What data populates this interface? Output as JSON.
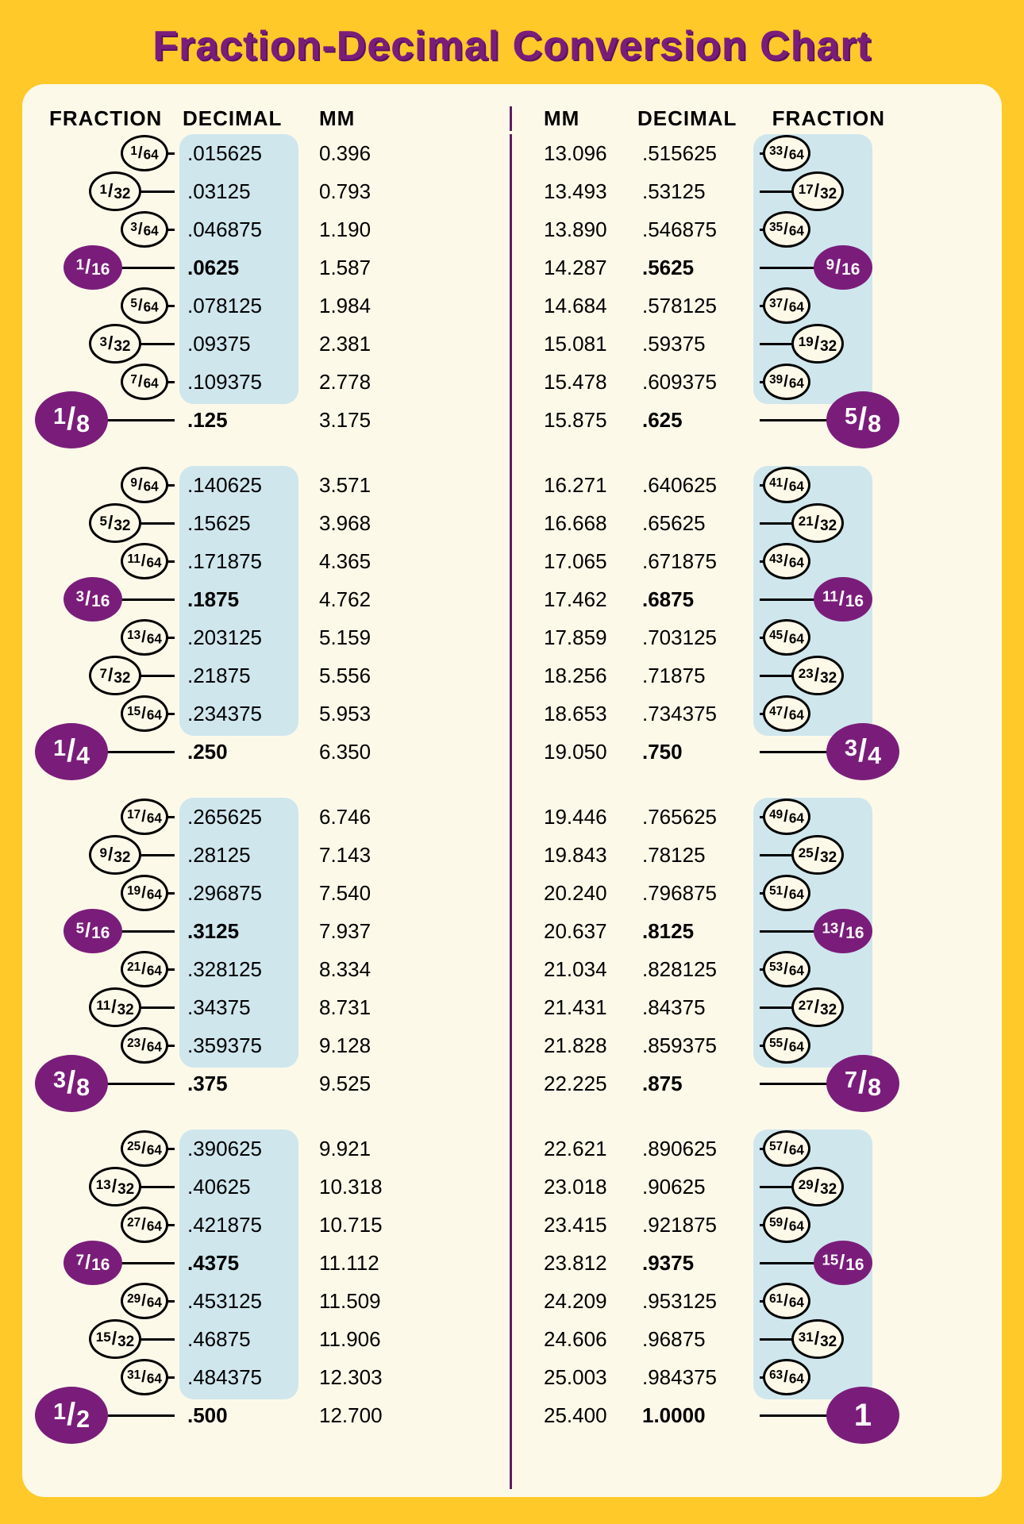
{
  "title": "Fraction-Decimal Conversion Chart",
  "headers": {
    "fraction": "FRACTION",
    "decimal": "DECIMAL",
    "mm": "MM"
  },
  "colors": {
    "page_bg": "#ffc929",
    "panel_bg": "#fdf9e9",
    "title_color": "#7a1d7a",
    "accent_purple": "#7a1d7a",
    "decimal_pill": "#cfe6ed",
    "divider": "#5d1d63"
  },
  "fontsizes": {
    "title": 52,
    "header": 26,
    "body": 26
  },
  "groups": [
    {
      "left": [
        {
          "num": "1",
          "den": "64",
          "dec": ".015625",
          "mm": "0.396",
          "lvl": "s64"
        },
        {
          "num": "1",
          "den": "32",
          "dec": ".03125",
          "mm": "0.793",
          "lvl": "s32"
        },
        {
          "num": "3",
          "den": "64",
          "dec": ".046875",
          "mm": "1.190",
          "lvl": "s64"
        },
        {
          "num": "1",
          "den": "16",
          "dec": ".0625",
          "mm": "1.587",
          "lvl": "s16",
          "bold": true
        },
        {
          "num": "5",
          "den": "64",
          "dec": ".078125",
          "mm": "1.984",
          "lvl": "s64"
        },
        {
          "num": "3",
          "den": "32",
          "dec": ".09375",
          "mm": "2.381",
          "lvl": "s32"
        },
        {
          "num": "7",
          "den": "64",
          "dec": ".109375",
          "mm": "2.778",
          "lvl": "s64"
        },
        {
          "num": "1",
          "den": "8",
          "dec": ".125",
          "mm": "3.175",
          "lvl": "s8",
          "bold": true
        }
      ],
      "right": [
        {
          "num": "33",
          "den": "64",
          "dec": ".515625",
          "mm": "13.096",
          "lvl": "s64"
        },
        {
          "num": "17",
          "den": "32",
          "dec": ".53125",
          "mm": "13.493",
          "lvl": "s32"
        },
        {
          "num": "35",
          "den": "64",
          "dec": ".546875",
          "mm": "13.890",
          "lvl": "s64"
        },
        {
          "num": "9",
          "den": "16",
          "dec": ".5625",
          "mm": "14.287",
          "lvl": "s16",
          "bold": true
        },
        {
          "num": "37",
          "den": "64",
          "dec": ".578125",
          "mm": "14.684",
          "lvl": "s64"
        },
        {
          "num": "19",
          "den": "32",
          "dec": ".59375",
          "mm": "15.081",
          "lvl": "s32"
        },
        {
          "num": "39",
          "den": "64",
          "dec": ".609375",
          "mm": "15.478",
          "lvl": "s64"
        },
        {
          "num": "5",
          "den": "8",
          "dec": ".625",
          "mm": "15.875",
          "lvl": "s8",
          "bold": true
        }
      ]
    },
    {
      "left": [
        {
          "num": "9",
          "den": "64",
          "dec": ".140625",
          "mm": "3.571",
          "lvl": "s64"
        },
        {
          "num": "5",
          "den": "32",
          "dec": ".15625",
          "mm": "3.968",
          "lvl": "s32"
        },
        {
          "num": "11",
          "den": "64",
          "dec": ".171875",
          "mm": "4.365",
          "lvl": "s64"
        },
        {
          "num": "3",
          "den": "16",
          "dec": ".1875",
          "mm": "4.762",
          "lvl": "s16",
          "bold": true
        },
        {
          "num": "13",
          "den": "64",
          "dec": ".203125",
          "mm": "5.159",
          "lvl": "s64"
        },
        {
          "num": "7",
          "den": "32",
          "dec": ".21875",
          "mm": "5.556",
          "lvl": "s32"
        },
        {
          "num": "15",
          "den": "64",
          "dec": ".234375",
          "mm": "5.953",
          "lvl": "s64"
        },
        {
          "num": "1",
          "den": "4",
          "dec": ".250",
          "mm": "6.350",
          "lvl": "s8",
          "bold": true
        }
      ],
      "right": [
        {
          "num": "41",
          "den": "64",
          "dec": ".640625",
          "mm": "16.271",
          "lvl": "s64"
        },
        {
          "num": "21",
          "den": "32",
          "dec": ".65625",
          "mm": "16.668",
          "lvl": "s32"
        },
        {
          "num": "43",
          "den": "64",
          "dec": ".671875",
          "mm": "17.065",
          "lvl": "s64"
        },
        {
          "num": "11",
          "den": "16",
          "dec": ".6875",
          "mm": "17.462",
          "lvl": "s16",
          "bold": true
        },
        {
          "num": "45",
          "den": "64",
          "dec": ".703125",
          "mm": "17.859",
          "lvl": "s64"
        },
        {
          "num": "23",
          "den": "32",
          "dec": ".71875",
          "mm": "18.256",
          "lvl": "s32"
        },
        {
          "num": "47",
          "den": "64",
          "dec": ".734375",
          "mm": "18.653",
          "lvl": "s64"
        },
        {
          "num": "3",
          "den": "4",
          "dec": ".750",
          "mm": "19.050",
          "lvl": "s8",
          "bold": true
        }
      ]
    },
    {
      "left": [
        {
          "num": "17",
          "den": "64",
          "dec": ".265625",
          "mm": "6.746",
          "lvl": "s64"
        },
        {
          "num": "9",
          "den": "32",
          "dec": ".28125",
          "mm": "7.143",
          "lvl": "s32"
        },
        {
          "num": "19",
          "den": "64",
          "dec": ".296875",
          "mm": "7.540",
          "lvl": "s64"
        },
        {
          "num": "5",
          "den": "16",
          "dec": ".3125",
          "mm": "7.937",
          "lvl": "s16",
          "bold": true
        },
        {
          "num": "21",
          "den": "64",
          "dec": ".328125",
          "mm": "8.334",
          "lvl": "s64"
        },
        {
          "num": "11",
          "den": "32",
          "dec": ".34375",
          "mm": "8.731",
          "lvl": "s32"
        },
        {
          "num": "23",
          "den": "64",
          "dec": ".359375",
          "mm": "9.128",
          "lvl": "s64"
        },
        {
          "num": "3",
          "den": "8",
          "dec": ".375",
          "mm": "9.525",
          "lvl": "s8",
          "bold": true
        }
      ],
      "right": [
        {
          "num": "49",
          "den": "64",
          "dec": ".765625",
          "mm": "19.446",
          "lvl": "s64"
        },
        {
          "num": "25",
          "den": "32",
          "dec": ".78125",
          "mm": "19.843",
          "lvl": "s32"
        },
        {
          "num": "51",
          "den": "64",
          "dec": ".796875",
          "mm": "20.240",
          "lvl": "s64"
        },
        {
          "num": "13",
          "den": "16",
          "dec": ".8125",
          "mm": "20.637",
          "lvl": "s16",
          "bold": true
        },
        {
          "num": "53",
          "den": "64",
          "dec": ".828125",
          "mm": "21.034",
          "lvl": "s64"
        },
        {
          "num": "27",
          "den": "32",
          "dec": ".84375",
          "mm": "21.431",
          "lvl": "s32"
        },
        {
          "num": "55",
          "den": "64",
          "dec": ".859375",
          "mm": "21.828",
          "lvl": "s64"
        },
        {
          "num": "7",
          "den": "8",
          "dec": ".875",
          "mm": "22.225",
          "lvl": "s8",
          "bold": true
        }
      ]
    },
    {
      "left": [
        {
          "num": "25",
          "den": "64",
          "dec": ".390625",
          "mm": "9.921",
          "lvl": "s64"
        },
        {
          "num": "13",
          "den": "32",
          "dec": ".40625",
          "mm": "10.318",
          "lvl": "s32"
        },
        {
          "num": "27",
          "den": "64",
          "dec": ".421875",
          "mm": "10.715",
          "lvl": "s64"
        },
        {
          "num": "7",
          "den": "16",
          "dec": ".4375",
          "mm": "11.112",
          "lvl": "s16",
          "bold": true
        },
        {
          "num": "29",
          "den": "64",
          "dec": ".453125",
          "mm": "11.509",
          "lvl": "s64"
        },
        {
          "num": "15",
          "den": "32",
          "dec": ".46875",
          "mm": "11.906",
          "lvl": "s32"
        },
        {
          "num": "31",
          "den": "64",
          "dec": ".484375",
          "mm": "12.303",
          "lvl": "s64"
        },
        {
          "num": "1",
          "den": "2",
          "dec": ".500",
          "mm": "12.700",
          "lvl": "s8",
          "bold": true
        }
      ],
      "right": [
        {
          "num": "57",
          "den": "64",
          "dec": ".890625",
          "mm": "22.621",
          "lvl": "s64"
        },
        {
          "num": "29",
          "den": "32",
          "dec": ".90625",
          "mm": "23.018",
          "lvl": "s32"
        },
        {
          "num": "59",
          "den": "64",
          "dec": ".921875",
          "mm": "23.415",
          "lvl": "s64"
        },
        {
          "num": "15",
          "den": "16",
          "dec": ".9375",
          "mm": "23.812",
          "lvl": "s16",
          "bold": true
        },
        {
          "num": "61",
          "den": "64",
          "dec": ".953125",
          "mm": "24.209",
          "lvl": "s64"
        },
        {
          "num": "31",
          "den": "32",
          "dec": ".96875",
          "mm": "24.606",
          "lvl": "s32"
        },
        {
          "num": "63",
          "den": "64",
          "dec": ".984375",
          "mm": "25.003",
          "lvl": "s64"
        },
        {
          "num": "1",
          "den": "",
          "dec": "1.0000",
          "mm": "25.400",
          "lvl": "s8",
          "bold": true,
          "whole": true
        }
      ]
    }
  ]
}
